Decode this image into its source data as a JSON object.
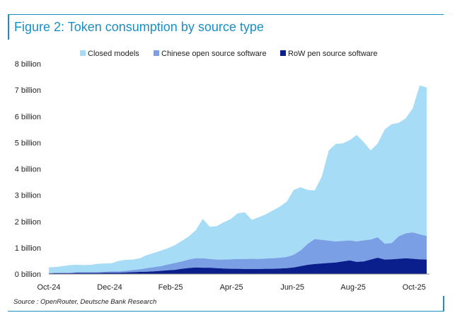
{
  "figure": {
    "title": "Figure 2: Token consumption by source type",
    "source": "Source : OpenRouter, Deutsche Bank Research"
  },
  "colors": {
    "closed": "#a6dcf5",
    "chinese": "#7b9fe5",
    "row": "#0a1e8c",
    "accent": "#1a8fc4",
    "axis": "#888888"
  },
  "chart_data": {
    "type": "area",
    "stacked": true,
    "xlim": [
      0,
      54
    ],
    "ylim": [
      0,
      8
    ],
    "ytick_values": [
      0,
      1,
      2,
      3,
      4,
      5,
      6,
      7,
      8
    ],
    "ytick_labels": [
      "0 billion",
      "1 billion",
      "2 billion",
      "3 billion",
      "4 billion",
      "5 billion",
      "6 billion",
      "7 billion",
      "8 billion"
    ],
    "xtick_positions": [
      0,
      8.7,
      17.4,
      26.1,
      34.8,
      43.5,
      52.2
    ],
    "xtick_labels": [
      "Oct-24",
      "Dec-24",
      "Feb-25",
      "Apr-25",
      "Jun-25",
      "Aug-25",
      "Oct-25"
    ],
    "legend_position": "top",
    "x": [
      0,
      1,
      2,
      3,
      4,
      5,
      6,
      7,
      8,
      9,
      10,
      11,
      12,
      13,
      14,
      15,
      16,
      17,
      18,
      19,
      20,
      21,
      22,
      23,
      24,
      25,
      26,
      27,
      28,
      29,
      30,
      31,
      32,
      33,
      34,
      35,
      36,
      37,
      38,
      39,
      40,
      41,
      42,
      43,
      44,
      45,
      46,
      47,
      48,
      49,
      50,
      51,
      52,
      53,
      54
    ],
    "series": [
      {
        "name": "RoW pen source software",
        "values": [
          0.02,
          0.03,
          0.03,
          0.03,
          0.04,
          0.04,
          0.04,
          0.04,
          0.05,
          0.05,
          0.05,
          0.06,
          0.07,
          0.08,
          0.09,
          0.1,
          0.12,
          0.14,
          0.16,
          0.2,
          0.23,
          0.25,
          0.24,
          0.24,
          0.22,
          0.21,
          0.2,
          0.2,
          0.19,
          0.19,
          0.19,
          0.2,
          0.2,
          0.21,
          0.22,
          0.25,
          0.3,
          0.35,
          0.38,
          0.4,
          0.42,
          0.44,
          0.48,
          0.52,
          0.46,
          0.48,
          0.55,
          0.62,
          0.55,
          0.56,
          0.58,
          0.6,
          0.58,
          0.56,
          0.55
        ]
      },
      {
        "name": "Chinese open source software",
        "values": [
          0.01,
          0.02,
          0.02,
          0.02,
          0.03,
          0.03,
          0.03,
          0.03,
          0.04,
          0.05,
          0.05,
          0.06,
          0.08,
          0.1,
          0.13,
          0.16,
          0.18,
          0.22,
          0.26,
          0.28,
          0.32,
          0.35,
          0.36,
          0.33,
          0.33,
          0.34,
          0.36,
          0.37,
          0.38,
          0.39,
          0.38,
          0.39,
          0.4,
          0.41,
          0.43,
          0.48,
          0.6,
          0.8,
          0.95,
          0.9,
          0.85,
          0.8,
          0.78,
          0.76,
          0.78,
          0.8,
          0.76,
          0.78,
          0.6,
          0.62,
          0.85,
          0.95,
          1.0,
          0.95,
          0.9
        ]
      },
      {
        "name": "Closed models",
        "values": [
          0.22,
          0.22,
          0.25,
          0.29,
          0.28,
          0.27,
          0.28,
          0.32,
          0.31,
          0.31,
          0.4,
          0.42,
          0.4,
          0.42,
          0.5,
          0.54,
          0.59,
          0.62,
          0.68,
          0.78,
          0.88,
          1.07,
          1.5,
          1.23,
          1.27,
          1.42,
          1.53,
          1.74,
          1.78,
          1.48,
          1.59,
          1.68,
          1.82,
          1.94,
          2.1,
          2.47,
          2.4,
          2.05,
          1.85,
          2.4,
          3.43,
          3.71,
          3.71,
          3.81,
          4.05,
          3.74,
          3.39,
          3.57,
          4.35,
          4.52,
          4.32,
          4.37,
          4.72,
          5.66,
          5.65
        ]
      }
    ]
  }
}
